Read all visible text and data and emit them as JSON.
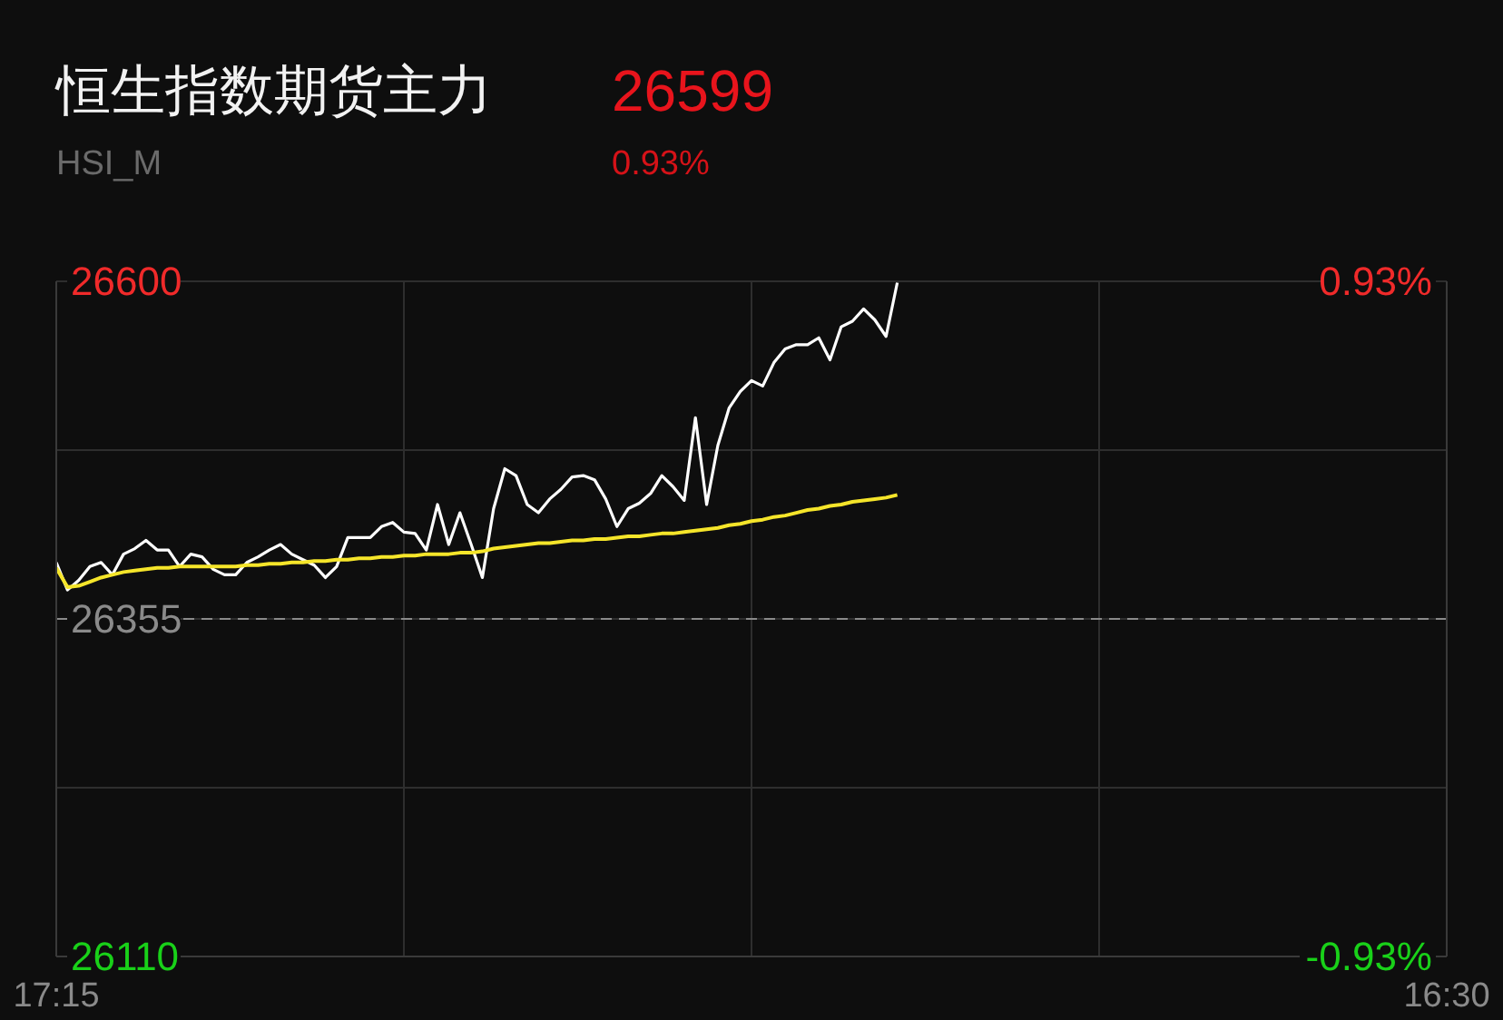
{
  "chart_data": {
    "type": "line",
    "title": "恒生指数期货主力",
    "subtitle": "HSI_M",
    "annotations": [
      "26599",
      "0.93%"
    ],
    "categories": [
      "17:15",
      null,
      null,
      null,
      null,
      null,
      null,
      null,
      null,
      null,
      null,
      null,
      null,
      null,
      null,
      null,
      null,
      null,
      null,
      null,
      null,
      null,
      null,
      null,
      null,
      null,
      null,
      null,
      null,
      null,
      null,
      null,
      null,
      null,
      null,
      null,
      null,
      null,
      null,
      null,
      null,
      null,
      null,
      null,
      null,
      null,
      null,
      null,
      null,
      null,
      null,
      null,
      null,
      null,
      null,
      null,
      null,
      null,
      null,
      null,
      null,
      null,
      null,
      null,
      null,
      null,
      null,
      null,
      null,
      null,
      null,
      null,
      null,
      null,
      null,
      null,
      null,
      null,
      null,
      null,
      null,
      null,
      null,
      null,
      null,
      null,
      null,
      null,
      null,
      null,
      null,
      null,
      null,
      null,
      null,
      null,
      null,
      null,
      null,
      null,
      null,
      null,
      null,
      null,
      null,
      null,
      null,
      null,
      null,
      null,
      null,
      null,
      null,
      null,
      null,
      null,
      null,
      null,
      null,
      null,
      null,
      null,
      null,
      null,
      "16:30"
    ],
    "series": [
      {
        "color": "#ffffff",
        "values": [
          26396,
          26376,
          26383,
          26393,
          26396,
          26387,
          26402,
          26406,
          26412,
          26405,
          26405,
          26393,
          26402,
          26400,
          26391,
          26387,
          26387,
          26396,
          26400,
          26405,
          26409,
          26402,
          26398,
          26394,
          26385,
          26393,
          26414,
          26414,
          26414,
          26422,
          26425,
          26418,
          26417,
          26405,
          26438,
          26409,
          26432,
          26409,
          26385,
          26435,
          26464,
          26459,
          26438,
          26432,
          26442,
          26449,
          26458,
          26459,
          26456,
          26442,
          26422,
          26435,
          26439,
          26446,
          26459,
          26451,
          26441,
          26501,
          26438,
          26481,
          26508,
          26520,
          26528,
          26524,
          26541,
          26551,
          26554,
          26554,
          26559,
          26543,
          26567,
          26571,
          26580,
          26572,
          26560,
          26599,
          null,
          null,
          null,
          null,
          null,
          null,
          null,
          null,
          null,
          null,
          null,
          null,
          null,
          null,
          null,
          null,
          null,
          null,
          null,
          null,
          null,
          null,
          null,
          null,
          null,
          null,
          null,
          null,
          null,
          null,
          null,
          null,
          null,
          null,
          null,
          null,
          null,
          null,
          null,
          null,
          null,
          null,
          null,
          null,
          null,
          null,
          null,
          null,
          null
        ]
      },
      {
        "color": "#f5e52a",
        "values": [
          26392,
          26378,
          26379,
          26382,
          26385,
          26387,
          26389,
          26390,
          26391,
          26392,
          26392,
          26393,
          26393,
          26393,
          26393,
          26393,
          26393,
          26394,
          26394,
          26395,
          26395,
          26396,
          26396,
          26397,
          26397,
          26398,
          26398,
          26399,
          26399,
          26400,
          26400,
          26401,
          26401,
          26402,
          26402,
          26402,
          26403,
          26403,
          26404,
          26406,
          26407,
          26408,
          26409,
          26410,
          26410,
          26411,
          26412,
          26412,
          26413,
          26413,
          26414,
          26415,
          26415,
          26416,
          26417,
          26417,
          26418,
          26419,
          26420,
          26421,
          26423,
          26424,
          26426,
          26427,
          26429,
          26430,
          26432,
          26434,
          26435,
          26437,
          26438,
          26440,
          26441,
          26442,
          26443,
          26445,
          null,
          null,
          null,
          null,
          null,
          null,
          null,
          null,
          null,
          null,
          null,
          null,
          null,
          null,
          null,
          null,
          null,
          null,
          null,
          null,
          null,
          null,
          null,
          null,
          null,
          null,
          null,
          null,
          null,
          null,
          null,
          null,
          null,
          null,
          null,
          null,
          null,
          null,
          null,
          null,
          null,
          null,
          null,
          null,
          null,
          null,
          null,
          null,
          null
        ]
      }
    ],
    "ylim": [
      26110,
      26600
    ],
    "yticks": [
      26600,
      {
        "value": 26477.5,
        "label": null
      },
      26355,
      {
        "value": 26232.5,
        "label": null
      },
      26110
    ],
    "y2lim": [
      -0.93,
      0.93
    ],
    "y2ticks": [
      {
        "value": 0.93,
        "label": "0.93%"
      },
      {
        "value": -0.93,
        "label": "-0.93%"
      }
    ],
    "ref_lines": [
      {
        "axis": "y",
        "value": 26355,
        "color": "#8a8a8a",
        "line_style": "dashed"
      }
    ],
    "grid": true,
    "marker": "none",
    "line_style": "solid"
  }
}
